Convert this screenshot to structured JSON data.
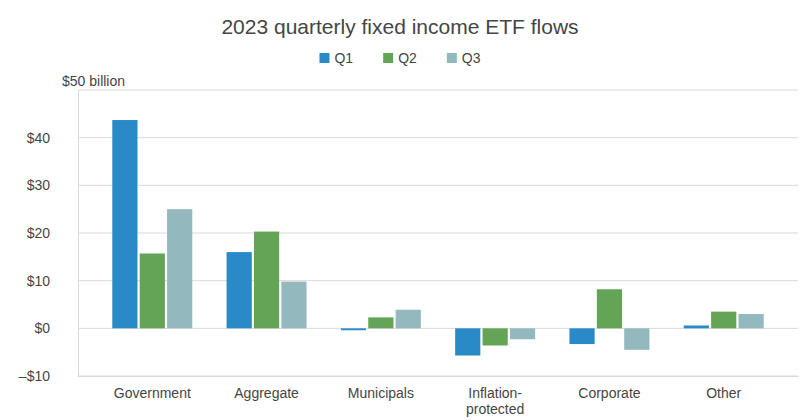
{
  "chart_data": {
    "type": "bar",
    "title": "2023 quarterly fixed income ETF flows",
    "categories": [
      "Government",
      "Aggregate",
      "Municipals",
      "Inflation-protected",
      "Corporate",
      "Other"
    ],
    "series": [
      {
        "name": "Q1",
        "color": "#2a8ac7",
        "values": [
          43.7,
          16.0,
          -0.4,
          -5.7,
          -3.3,
          0.6
        ]
      },
      {
        "name": "Q2",
        "color": "#64a456",
        "values": [
          15.7,
          20.3,
          2.3,
          -3.6,
          8.2,
          3.5
        ]
      },
      {
        "name": "Q3",
        "color": "#93b8bd",
        "values": [
          25.0,
          9.8,
          3.9,
          -2.3,
          -4.5,
          3.0
        ]
      }
    ],
    "ylim": [
      -10,
      50
    ],
    "yticks": [
      {
        "value": -10,
        "label": "–$10"
      },
      {
        "value": 0,
        "label": "$0"
      },
      {
        "value": 10,
        "label": "$10"
      },
      {
        "value": 20,
        "label": "$20"
      },
      {
        "value": 30,
        "label": "$30"
      },
      {
        "value": 40,
        "label": "$40"
      },
      {
        "value": 50,
        "label": "$50 billion"
      }
    ],
    "grid": true,
    "legend": "top"
  }
}
